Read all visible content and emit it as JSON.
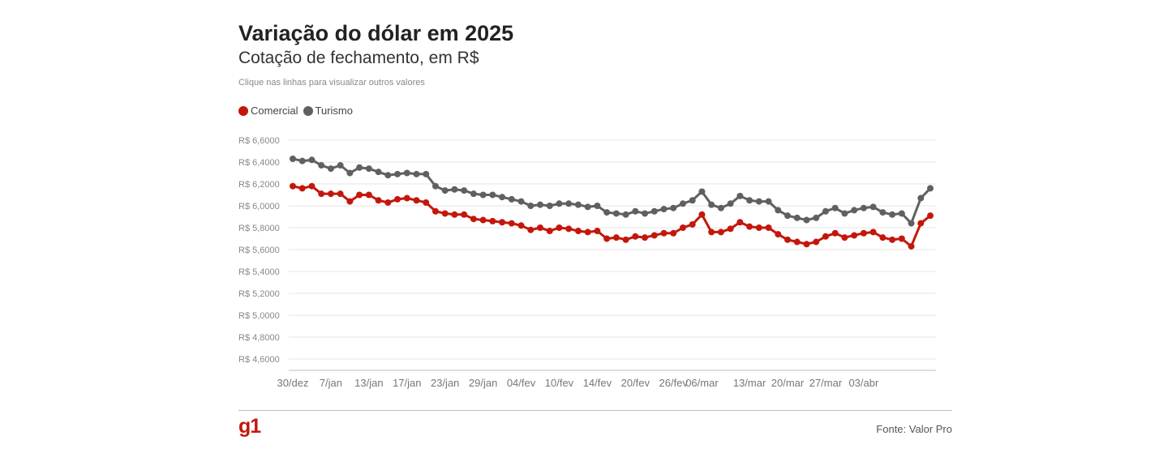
{
  "header": {
    "title": "Variação do dólar em 2025",
    "subtitle": "Cotação de fechamento, em R$",
    "hint": "Clique nas linhas para visualizar outros valores"
  },
  "legend": [
    {
      "label": "Comercial",
      "color": "#c4170c"
    },
    {
      "label": "Turismo",
      "color": "#606060"
    }
  ],
  "footer": {
    "logo": "g1",
    "source": "Fonte: Valor Pro",
    "logo_color": "#c4170c"
  },
  "chart_data": {
    "type": "line",
    "title": "Variação do dólar em 2025",
    "subtitle": "Cotação de fechamento, em R$",
    "ylim": [
      4.5,
      6.65
    ],
    "grid": true,
    "legend_position": "top-left",
    "y_tick_values": [
      4.6,
      4.8,
      5.0,
      5.2,
      5.4,
      5.6,
      5.8,
      6.0,
      6.2,
      6.4,
      6.6
    ],
    "y_tick_labels": [
      "R$ 4,6000",
      "R$ 4,8000",
      "R$ 5,0000",
      "R$ 5,2000",
      "R$ 5,4000",
      "R$ 5,6000",
      "R$ 5,8000",
      "R$ 6,0000",
      "R$ 6,2000",
      "R$ 6,4000",
      "R$ 6,6000"
    ],
    "x_tick_labels": [
      {
        "label": "30/dez",
        "index": 0
      },
      {
        "label": "7/jan",
        "index": 4
      },
      {
        "label": "13/jan",
        "index": 8
      },
      {
        "label": "17/jan",
        "index": 12
      },
      {
        "label": "23/jan",
        "index": 16
      },
      {
        "label": "29/jan",
        "index": 20
      },
      {
        "label": "04/fev",
        "index": 24
      },
      {
        "label": "10/fev",
        "index": 28
      },
      {
        "label": "14/fev",
        "index": 32
      },
      {
        "label": "20/fev",
        "index": 36
      },
      {
        "label": "26/fev",
        "index": 40
      },
      {
        "label": "06/mar",
        "index": 43
      },
      {
        "label": "13/mar",
        "index": 48
      },
      {
        "label": "20/mar",
        "index": 52
      },
      {
        "label": "27/mar",
        "index": 56
      },
      {
        "label": "03/abr",
        "index": 60
      }
    ],
    "series": [
      {
        "name": "Comercial",
        "color": "#c4170c",
        "values": [
          6.18,
          6.16,
          6.18,
          6.11,
          6.11,
          6.11,
          6.04,
          6.1,
          6.1,
          6.05,
          6.03,
          6.06,
          6.07,
          6.05,
          6.03,
          5.95,
          5.93,
          5.92,
          5.92,
          5.88,
          5.87,
          5.86,
          5.85,
          5.84,
          5.82,
          5.78,
          5.8,
          5.77,
          5.8,
          5.79,
          5.77,
          5.76,
          5.77,
          5.7,
          5.71,
          5.69,
          5.72,
          5.71,
          5.73,
          5.75,
          5.75,
          5.8,
          5.83,
          5.92,
          5.76,
          5.76,
          5.79,
          5.85,
          5.81,
          5.8,
          5.8,
          5.74,
          5.69,
          5.67,
          5.65,
          5.67,
          5.72,
          5.75,
          5.71,
          5.73,
          5.75,
          5.76,
          5.71,
          5.69,
          5.7,
          5.63,
          5.84,
          5.91
        ]
      },
      {
        "name": "Turismo",
        "color": "#606060",
        "values": [
          6.43,
          6.41,
          6.42,
          6.37,
          6.34,
          6.37,
          6.3,
          6.35,
          6.34,
          6.31,
          6.28,
          6.29,
          6.3,
          6.29,
          6.29,
          6.18,
          6.14,
          6.15,
          6.14,
          6.11,
          6.1,
          6.1,
          6.08,
          6.06,
          6.04,
          6.0,
          6.01,
          6.0,
          6.02,
          6.02,
          6.01,
          5.99,
          6.0,
          5.94,
          5.93,
          5.92,
          5.95,
          5.93,
          5.95,
          5.97,
          5.98,
          6.02,
          6.05,
          6.13,
          6.01,
          5.98,
          6.02,
          6.09,
          6.05,
          6.04,
          6.04,
          5.96,
          5.91,
          5.89,
          5.87,
          5.89,
          5.95,
          5.98,
          5.93,
          5.96,
          5.98,
          5.99,
          5.94,
          5.92,
          5.93,
          5.84,
          6.07,
          6.16
        ]
      }
    ]
  }
}
